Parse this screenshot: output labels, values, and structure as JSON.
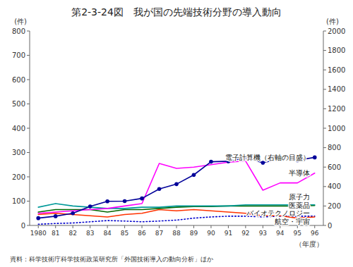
{
  "chart_data": {
    "type": "line",
    "title": "第2-3-24図　我が国の先端技術分野の導入動向",
    "categories": [
      "1980",
      "81",
      "82",
      "83",
      "84",
      "85",
      "86",
      "87",
      "88",
      "89",
      "90",
      "91",
      "92",
      "93",
      "94",
      "95",
      "96"
    ],
    "series": [
      {
        "name": "電子計算機（右軸の目盛）",
        "color": "#000099",
        "axis": "y2",
        "marker": "circle",
        "values": [
          75,
          95,
          125,
          195,
          248,
          250,
          278,
          375,
          425,
          520,
          655,
          660,
          695,
          645,
          685,
          670,
          700
        ]
      },
      {
        "name": "半導体",
        "color": "#ff00ff",
        "values": [
          50,
          55,
          60,
          65,
          70,
          80,
          90,
          255,
          235,
          240,
          250,
          260,
          265,
          145,
          175,
          175,
          215
        ]
      },
      {
        "name": "原子力",
        "color": "#009999",
        "values": [
          75,
          90,
          80,
          75,
          70,
          70,
          75,
          75,
          80,
          80,
          80,
          80,
          85,
          85,
          85,
          85,
          85
        ]
      },
      {
        "name": "医薬品",
        "color": "#006600",
        "values": [
          55,
          65,
          65,
          65,
          55,
          65,
          65,
          70,
          75,
          78,
          78,
          80,
          80,
          80,
          80,
          80,
          82
        ]
      },
      {
        "name": "航空・宇宙",
        "color": "#ff3300",
        "values": [
          45,
          50,
          45,
          40,
          35,
          45,
          50,
          65,
          60,
          65,
          60,
          55,
          50,
          40,
          40,
          30,
          35
        ]
      },
      {
        "name": "バイオテクノロジー",
        "color": "#0000cc",
        "line_style": "dotted",
        "values": [
          5,
          8,
          10,
          15,
          20,
          18,
          15,
          18,
          22,
          30,
          35,
          38,
          38,
          35,
          38,
          38,
          38
        ]
      }
    ],
    "ylabel": "(件)",
    "y2label": "(件)",
    "xlabel": "（年度）",
    "source": "資料：科学技術庁科学技術政策研究所「外国技術導入の動向分析」ほか",
    "ylim": [
      0,
      800
    ],
    "yticks": [
      0,
      100,
      200,
      300,
      400,
      500,
      600,
      700,
      800
    ],
    "y2lim": [
      0,
      2000
    ],
    "y2ticks": [
      0,
      200,
      400,
      600,
      800,
      1000,
      1200,
      1400,
      1600,
      1800,
      2000
    ],
    "grid": false
  }
}
